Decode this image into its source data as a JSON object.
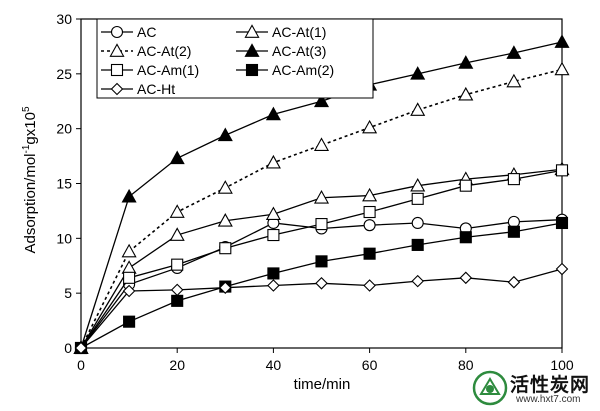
{
  "chart_data": {
    "type": "line",
    "title": "",
    "xlabel": "time/min",
    "ylabel": "Adsorption/mol",
    "ylabel_sup1": "-1",
    "ylabel_mid": "gx10",
    "ylabel_sup2": "5",
    "xlim": [
      0,
      100
    ],
    "ylim": [
      0,
      30
    ],
    "xticks": [
      "0",
      "20",
      "40",
      "60",
      "80",
      "100"
    ],
    "yticks": [
      "0",
      "5",
      "10",
      "15",
      "20",
      "25",
      "30"
    ],
    "legend_position": "top-left",
    "series": [
      {
        "name": "AC",
        "marker": "circle-open",
        "line": "solid",
        "x": [
          0,
          10,
          20,
          30,
          40,
          50,
          60,
          70,
          80,
          90,
          100
        ],
        "y": [
          0,
          5.8,
          7.3,
          9.2,
          11.4,
          10.9,
          11.2,
          11.4,
          10.9,
          11.5,
          11.7
        ]
      },
      {
        "name": "AC-At(1)",
        "marker": "triangle-open",
        "line": "solid",
        "x": [
          0,
          10,
          20,
          30,
          40,
          50,
          60,
          70,
          80,
          90,
          100
        ],
        "y": [
          0,
          7.3,
          10.3,
          11.6,
          12.2,
          13.7,
          13.9,
          14.8,
          15.4,
          15.8,
          16.3
        ]
      },
      {
        "name": "AC-At(2)",
        "marker": "triangle-open",
        "line": "dotted",
        "x": [
          0,
          10,
          20,
          30,
          40,
          50,
          60,
          70,
          80,
          90,
          100
        ],
        "y": [
          0,
          8.8,
          12.4,
          14.6,
          16.9,
          18.5,
          20.1,
          21.7,
          23.1,
          24.3,
          25.4
        ]
      },
      {
        "name": "AC-At(3)",
        "marker": "triangle-filled",
        "line": "solid",
        "x": [
          0,
          10,
          20,
          30,
          40,
          50,
          60,
          70,
          80,
          90,
          100
        ],
        "y": [
          0,
          13.8,
          17.3,
          19.4,
          21.3,
          22.5,
          24.0,
          25.0,
          26.0,
          26.9,
          27.9
        ]
      },
      {
        "name": "AC-Am(1)",
        "marker": "square-open",
        "line": "solid",
        "x": [
          0,
          10,
          20,
          30,
          40,
          50,
          60,
          70,
          80,
          90,
          100
        ],
        "y": [
          0,
          6.4,
          7.6,
          9.1,
          10.3,
          11.3,
          12.4,
          13.6,
          14.8,
          15.4,
          16.2
        ]
      },
      {
        "name": "AC-Am(2)",
        "marker": "square-filled",
        "line": "solid",
        "x": [
          0,
          10,
          20,
          30,
          40,
          50,
          60,
          70,
          80,
          90,
          100
        ],
        "y": [
          0,
          2.4,
          4.3,
          5.6,
          6.8,
          7.9,
          8.6,
          9.4,
          10.1,
          10.6,
          11.4
        ]
      },
      {
        "name": "AC-Ht",
        "marker": "diamond-open",
        "line": "solid",
        "x": [
          0,
          10,
          20,
          30,
          40,
          50,
          60,
          70,
          80,
          90,
          100
        ],
        "y": [
          0,
          5.2,
          5.3,
          5.5,
          5.7,
          5.9,
          5.7,
          6.1,
          6.4,
          6.0,
          7.2
        ]
      }
    ]
  },
  "watermark": {
    "text": "活性炭网",
    "url": "www.hxt7.com"
  }
}
